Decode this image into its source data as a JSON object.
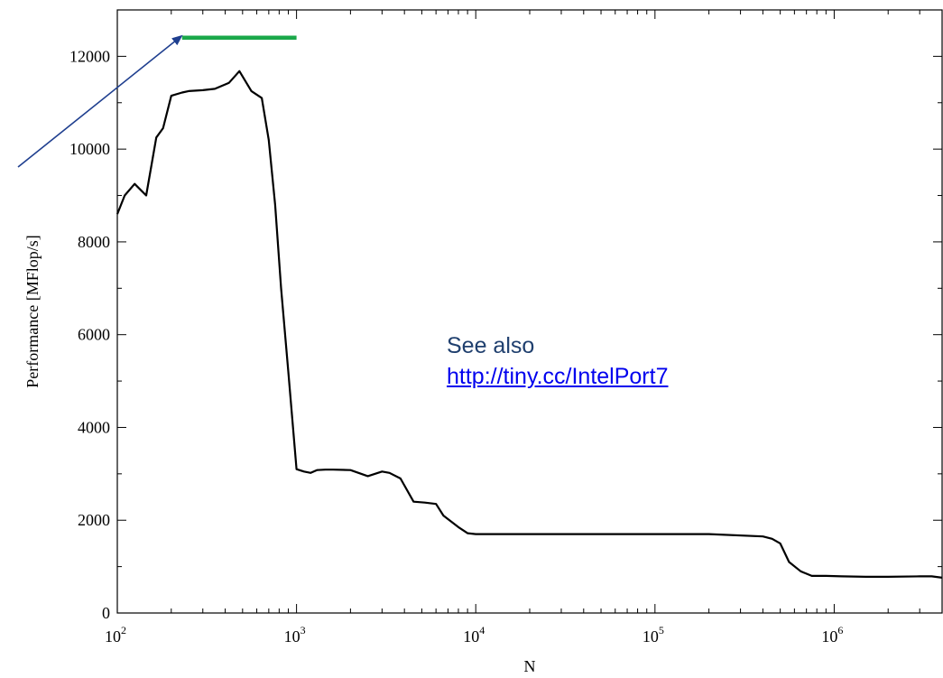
{
  "chart_data": {
    "type": "line",
    "xlabel": "N",
    "ylabel": "Performance [MFlop/s]",
    "xscale": "log",
    "xlim": [
      100,
      4000000
    ],
    "ylim": [
      0,
      13000
    ],
    "grid": false,
    "yticks": [
      {
        "value": 0,
        "label": "0"
      },
      {
        "value": 2000,
        "label": "2000"
      },
      {
        "value": 4000,
        "label": "4000"
      },
      {
        "value": 6000,
        "label": "6000"
      },
      {
        "value": 8000,
        "label": "8000"
      },
      {
        "value": 10000,
        "label": "10000"
      },
      {
        "value": 12000,
        "label": "12000"
      }
    ],
    "xticks": [
      {
        "value": 100,
        "base": "10",
        "exp": "2"
      },
      {
        "value": 1000,
        "base": "10",
        "exp": "3"
      },
      {
        "value": 10000,
        "base": "10",
        "exp": "4"
      },
      {
        "value": 100000,
        "base": "10",
        "exp": "5"
      },
      {
        "value": 1000000,
        "base": "10",
        "exp": "6"
      }
    ],
    "series": [
      {
        "color": "#000000",
        "x": [
          100,
          110,
          125,
          145,
          165,
          180,
          200,
          230,
          250,
          300,
          350,
          420,
          480,
          560,
          640,
          700,
          760,
          820,
          900,
          1000,
          1100,
          1200,
          1300,
          1450,
          1600,
          2000,
          2500,
          3000,
          3300,
          3800,
          4500,
          5200,
          6000,
          6600,
          8000,
          9000,
          10000,
          11500,
          14000,
          20000,
          50000,
          100000,
          200000,
          400000,
          450000,
          500000,
          560000,
          650000,
          750000,
          900000,
          1100000,
          1500000,
          2000000,
          3000000,
          3500000,
          4000000
        ],
        "y": [
          8600,
          9000,
          9250,
          9000,
          10250,
          10450,
          11150,
          11220,
          11250,
          11270,
          11300,
          11430,
          11680,
          11250,
          11100,
          10200,
          8800,
          7000,
          5200,
          3100,
          3050,
          3020,
          3080,
          3090,
          3090,
          3080,
          2950,
          3050,
          3020,
          2900,
          2400,
          2380,
          2350,
          2100,
          1850,
          1720,
          1700,
          1700,
          1700,
          1700,
          1700,
          1700,
          1700,
          1650,
          1600,
          1500,
          1100,
          900,
          800,
          800,
          790,
          780,
          780,
          790,
          790,
          760
        ]
      },
      {
        "color": "#1aa84a",
        "x": [
          230,
          1000
        ],
        "y": [
          12400,
          12400
        ]
      }
    ],
    "annotations": [
      {
        "text": "See also"
      },
      {
        "text": "http://tiny.cc/IntelPort7"
      }
    ],
    "arrow_color": "#1f3f8f"
  }
}
